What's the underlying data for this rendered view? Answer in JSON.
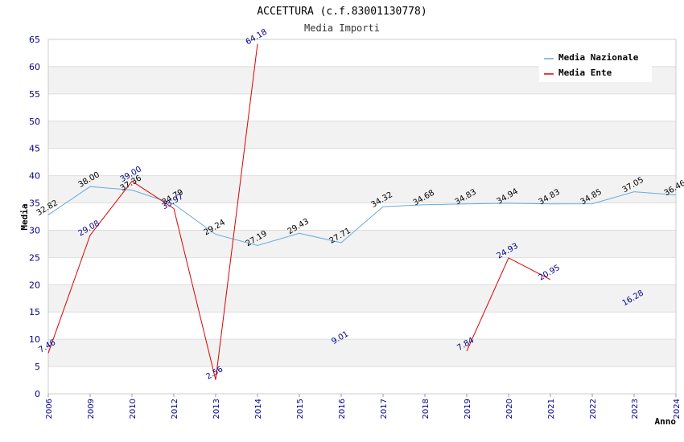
{
  "chart_data": {
    "type": "line",
    "title": "ACCETTURA (c.f.83001130778)",
    "subtitle": "Media Importi",
    "xlabel": "Anno",
    "ylabel": "Media",
    "ylim": [
      0,
      65
    ],
    "yticks": [
      0,
      5,
      10,
      15,
      20,
      25,
      30,
      35,
      40,
      45,
      50,
      55,
      60,
      65
    ],
    "categories": [
      "2006",
      "2009",
      "2010",
      "2012",
      "2013",
      "2014",
      "2015",
      "2016",
      "2017",
      "2018",
      "2019",
      "2020",
      "2021",
      "2022",
      "2023",
      "2024"
    ],
    "grid": true,
    "legend_position": "top-right",
    "series": [
      {
        "name": "Media Nazionale",
        "color": "#66aadd",
        "values": [
          32.82,
          38.0,
          37.36,
          34.79,
          29.24,
          27.19,
          29.43,
          27.71,
          34.32,
          34.68,
          34.83,
          34.94,
          34.83,
          34.85,
          37.05,
          36.46
        ],
        "labels": [
          "32.82",
          "38.00",
          "37.36",
          "34.79",
          "29.24",
          "27.19",
          "29.43",
          "27.71",
          "34.32",
          "34.68",
          "34.83",
          "34.94",
          "34.83",
          "34.85",
          "37.05",
          "36.46"
        ]
      },
      {
        "name": "Media Ente",
        "color": "#dd0000",
        "values": [
          7.46,
          29.08,
          39.0,
          33.97,
          2.56,
          64.18,
          null,
          9.01,
          null,
          null,
          7.84,
          24.93,
          20.95,
          null,
          16.28,
          null
        ],
        "labels": [
          "7.46",
          "29.08",
          "39.00",
          "33.97",
          "2.56",
          "64.18",
          null,
          "9.01",
          null,
          null,
          "7.84",
          "24.93",
          "20.95",
          null,
          "16.28",
          null
        ]
      }
    ]
  }
}
